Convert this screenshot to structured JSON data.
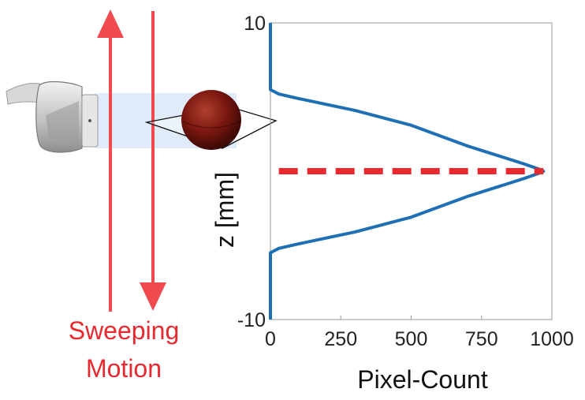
{
  "colors": {
    "curve": "#1f6fb4",
    "peak_marker": "#e8292f",
    "arrows": "#f04a4f",
    "motion_text": "#e8292f",
    "beam": "#dce9f7",
    "sphere": "#7a1710"
  },
  "motion_label": {
    "line1": "Sweeping",
    "line2": "Motion"
  },
  "icons": {
    "probe": "ultrasound-probe-icon",
    "sphere": "target-sphere-icon",
    "up_arrow": "arrow-up-icon",
    "down_arrow": "arrow-down-icon"
  },
  "chart_data": {
    "type": "line",
    "xlabel": "Pixel-Count",
    "ylabel": "z [mm]",
    "xlim": [
      0,
      1000
    ],
    "ylim": [
      -10,
      10
    ],
    "x_ticks": [
      "0",
      "250",
      "500",
      "750",
      "1000"
    ],
    "y_ticks": [
      "-10",
      "10"
    ],
    "grid": false,
    "series": [
      {
        "points": [
          [
            0,
            -10
          ],
          [
            0,
            -5.5
          ],
          [
            10,
            -5.4
          ],
          [
            30,
            -5.2
          ],
          [
            100,
            -4.9
          ],
          [
            200,
            -4.5
          ],
          [
            300,
            -4.1
          ],
          [
            400,
            -3.6
          ],
          [
            500,
            -3.1
          ],
          [
            600,
            -2.4
          ],
          [
            700,
            -1.7
          ],
          [
            800,
            -1.1
          ],
          [
            900,
            -0.5
          ],
          [
            960,
            -0.1
          ],
          [
            970,
            0
          ],
          [
            960,
            0.1
          ],
          [
            900,
            0.5
          ],
          [
            800,
            1.1
          ],
          [
            700,
            1.7
          ],
          [
            600,
            2.4
          ],
          [
            500,
            3.1
          ],
          [
            400,
            3.6
          ],
          [
            300,
            4.1
          ],
          [
            200,
            4.5
          ],
          [
            100,
            4.9
          ],
          [
            30,
            5.2
          ],
          [
            10,
            5.4
          ],
          [
            0,
            5.5
          ],
          [
            0,
            10
          ]
        ]
      }
    ],
    "peak_line": {
      "z": 0,
      "x_range": [
        30,
        970
      ]
    }
  }
}
